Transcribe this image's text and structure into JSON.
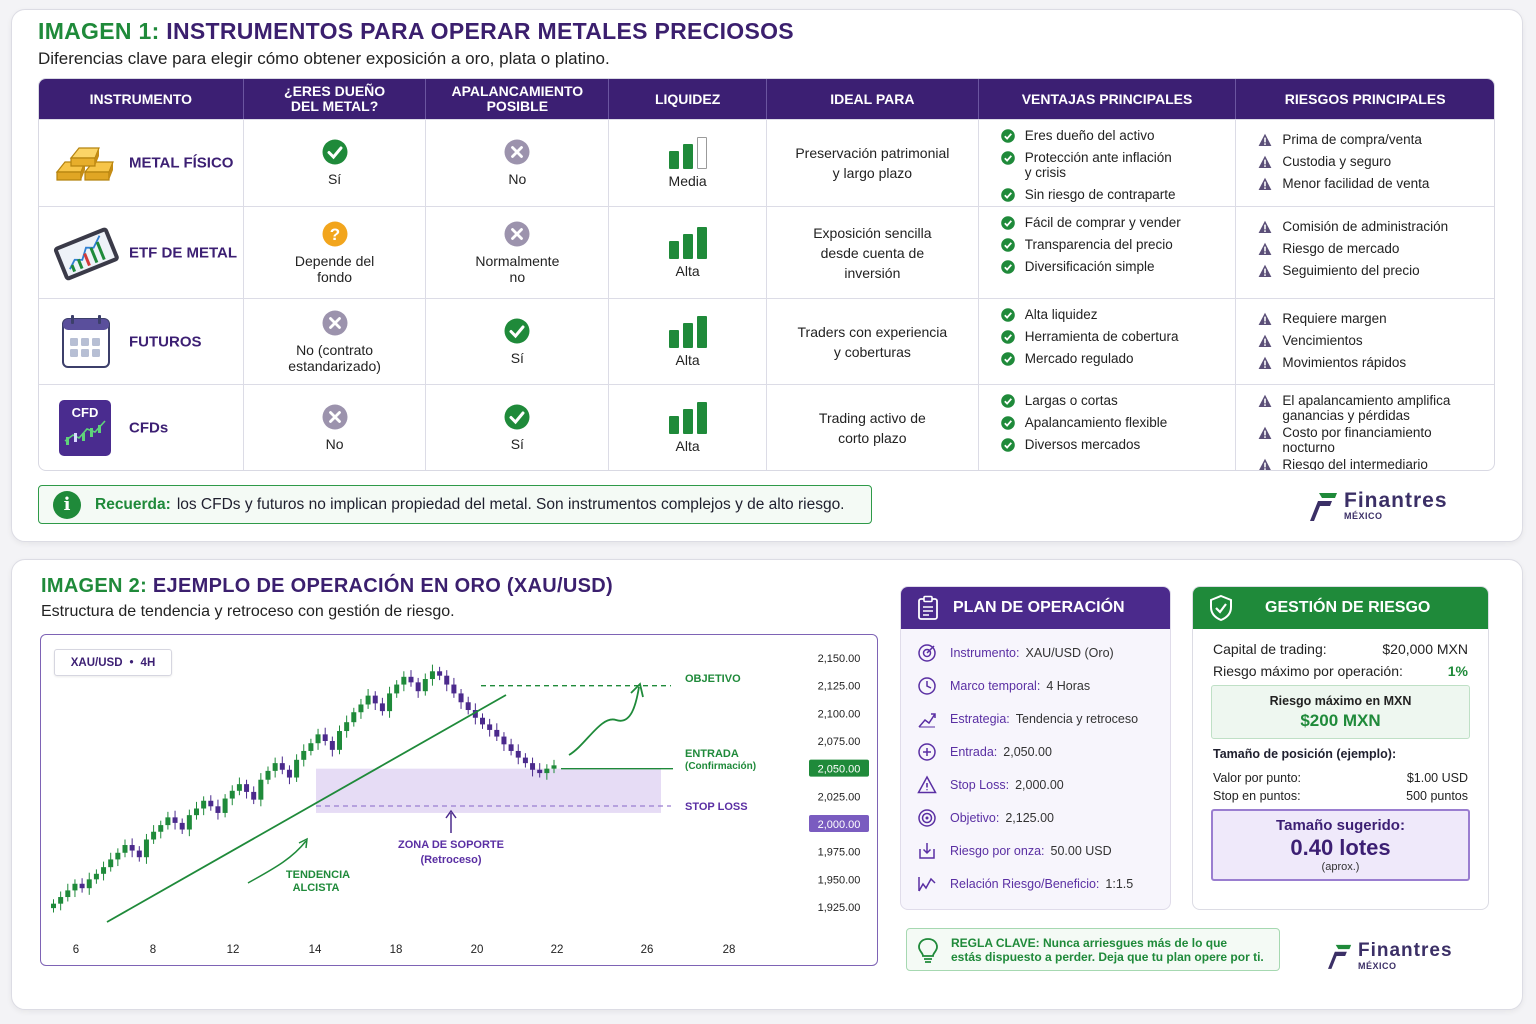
{
  "section1": {
    "title_num": "IMAGEN 1:",
    "title_text": "INSTRUMENTOS PARA OPERAR METALES PRECIOSOS",
    "subtitle": "Diferencias clave para elegir cómo obtener exposición a oro, plata o platino.",
    "headers": [
      "INSTRUMENTO",
      "¿ERES DUEÑO\nDEL METAL?",
      "APALANCAMIENTO\nPOSIBLE",
      "LIQUIDEZ",
      "IDEAL PARA",
      "VENTAJAS PRINCIPALES",
      "RIESGOS PRINCIPALES"
    ],
    "rows": [
      {
        "name": "METAL FÍSICO",
        "icon": "gold-bars-icon",
        "owner": "Sí",
        "owner_status": "yes",
        "leverage": "No",
        "leverage_status": "no",
        "liquidity": "Media",
        "liquidity_level": 2,
        "ideal": "Preservación patrimonial\ny largo plazo",
        "advantages": [
          "Eres dueño del activo",
          "Protección ante inflación\ny crisis",
          "Sin riesgo de contraparte"
        ],
        "risks": [
          "Prima de compra/venta",
          "Custodia y seguro",
          "Menor facilidad de venta"
        ]
      },
      {
        "name": "ETF DE METAL",
        "icon": "tablet-chart-icon",
        "owner": "Depende del\nfondo",
        "owner_status": "maybe",
        "leverage": "Normalmente\nno",
        "leverage_status": "no",
        "liquidity": "Alta",
        "liquidity_level": 3,
        "ideal": "Exposición sencilla\ndesde cuenta de\ninversión",
        "advantages": [
          "Fácil de comprar y vender",
          "Transparencia del precio",
          "Diversificación simple"
        ],
        "risks": [
          "Comisión de administración",
          "Riesgo de mercado",
          "Seguimiento del precio"
        ]
      },
      {
        "name": "FUTUROS",
        "icon": "calendar-icon",
        "owner": "No (contrato\nestandarizado)",
        "owner_status": "no",
        "leverage": "Sí",
        "leverage_status": "yes",
        "liquidity": "Alta",
        "liquidity_level": 3,
        "ideal": "Traders con experiencia\ny coberturas",
        "advantages": [
          "Alta liquidez",
          "Herramienta de cobertura",
          "Mercado regulado"
        ],
        "risks": [
          "Requiere margen",
          "Vencimientos",
          "Movimientos rápidos"
        ]
      },
      {
        "name": "CFDs",
        "icon": "cfd-icon",
        "icon_text": "CFD",
        "owner": "No",
        "owner_status": "no",
        "leverage": "Sí",
        "leverage_status": "yes",
        "liquidity": "Alta",
        "liquidity_level": 3,
        "ideal": "Trading activo de\ncorto plazo",
        "advantages": [
          "Largas o cortas",
          "Apalancamiento flexible",
          "Diversos mercados"
        ],
        "risks": [
          "El apalancamiento amplifica\nganancias y pérdidas",
          "Costo por financiamiento\nnocturno",
          "Riesgo del intermediario"
        ]
      }
    ],
    "note_bold": "Recuerda:",
    "note_text": "los CFDs y futuros no implican propiedad del metal. Son instrumentos complejos y de alto riesgo."
  },
  "brand": {
    "name": "Finantres",
    "sub": "MÉXICO"
  },
  "section2": {
    "title_num": "IMAGEN 2:",
    "title_text": "EJEMPLO DE OPERACIÓN EN ORO (XAU/USD)",
    "subtitle": "Estructura de tendencia y retroceso con gestión de riesgo.",
    "chart_tag_symbol": "XAU/USD",
    "chart_tag_sep": "•",
    "chart_tag_tf": "4H",
    "label_objetivo": "OBJETIVO",
    "label_entrada": "ENTRADA",
    "label_entrada_sub": "(Confirmación)",
    "label_stop": "STOP LOSS",
    "label_zona": "ZONA DE SOPORTE",
    "label_zona_sub": "(Retroceso)",
    "label_tendencia": "TENDENCIA",
    "label_tendencia_sub": "ALCISTA",
    "plan": {
      "title": "PLAN DE OPERACIÓN",
      "rows": [
        {
          "label": "Instrumento:",
          "value": "XAU/USD (Oro)",
          "icon": "target-icon"
        },
        {
          "label": "Marco temporal:",
          "value": "4 Horas",
          "icon": "clock-icon"
        },
        {
          "label": "Estrategia:",
          "value": "Tendencia y retroceso",
          "icon": "trend-icon"
        },
        {
          "label": "Entrada:",
          "value": "2,050.00",
          "icon": "plus-circle-icon"
        },
        {
          "label": "Stop Loss:",
          "value": "2,000.00",
          "icon": "warning-icon"
        },
        {
          "label": "Objetivo:",
          "value": "2,125.00",
          "icon": "bullseye-icon"
        },
        {
          "label": "Riesgo por onza:",
          "value": "50.00 USD",
          "icon": "down-arrow-box-icon"
        },
        {
          "label": "Relación Riesgo/Beneficio:",
          "value": "1:1.5",
          "icon": "ratio-icon"
        }
      ]
    },
    "risk": {
      "title": "GESTIÓN DE RIESGO",
      "capital_label": "Capital de trading:",
      "capital_value": "$20,000 MXN",
      "maxrisk_label": "Riesgo máximo por operación:",
      "maxrisk_value": "1%",
      "box1_label": "Riesgo máximo en MXN",
      "box1_value": "$200 MXN",
      "size_label": "Tamaño de posición (ejemplo):",
      "ppt_label": "Valor por punto:",
      "ppt_value": "$1.00 USD",
      "stop_label": "Stop en puntos:",
      "stop_value": "500 puntos",
      "box2_label": "Tamaño sugerido:",
      "box2_value": "0.40 lotes",
      "box2_sub": "(aprox.)"
    },
    "rule_bold": "REGLA CLAVE:",
    "rule_text_1": "Nunca arriesgues más de lo que",
    "rule_text_2": "estás dispuesto a perder. Deja que tu plan opere por ti."
  },
  "chart_data": {
    "type": "candlestick",
    "title": "",
    "x_ticks": [
      "6",
      "8",
      "12",
      "14",
      "18",
      "20",
      "22",
      "26",
      "28"
    ],
    "y_ticks": [
      2150,
      2125,
      2100,
      2075,
      2050,
      2025,
      2000,
      1975,
      1950,
      1925
    ],
    "ylim": [
      1920,
      2160
    ],
    "levels": {
      "objetivo": 2125.0,
      "entrada": 2050.0,
      "stop_loss": 2000.0
    },
    "support_zone": [
      2010,
      2050
    ],
    "highlight_labels": [
      "2,050.00",
      "2,000.00"
    ],
    "candles_close": [
      1928,
      1934,
      1940,
      1946,
      1942,
      1950,
      1955,
      1961,
      1968,
      1974,
      1981,
      1976,
      1970,
      1986,
      1993,
      1999,
      2006,
      2001,
      1995,
      2008,
      2014,
      2021,
      2016,
      2010,
      2023,
      2030,
      2036,
      2029,
      2022,
      2040,
      2048,
      2055,
      2049,
      2042,
      2058,
      2066,
      2073,
      2081,
      2075,
      2067,
      2084,
      2092,
      2101,
      2108,
      2116,
      2109,
      2102,
      2118,
      2126,
      2133,
      2128,
      2120,
      2131,
      2138,
      2134,
      2126,
      2118,
      2110,
      2103,
      2096,
      2090,
      2085,
      2079,
      2072,
      2066,
      2060,
      2055,
      2049,
      2046,
      2050,
      2053
    ]
  }
}
